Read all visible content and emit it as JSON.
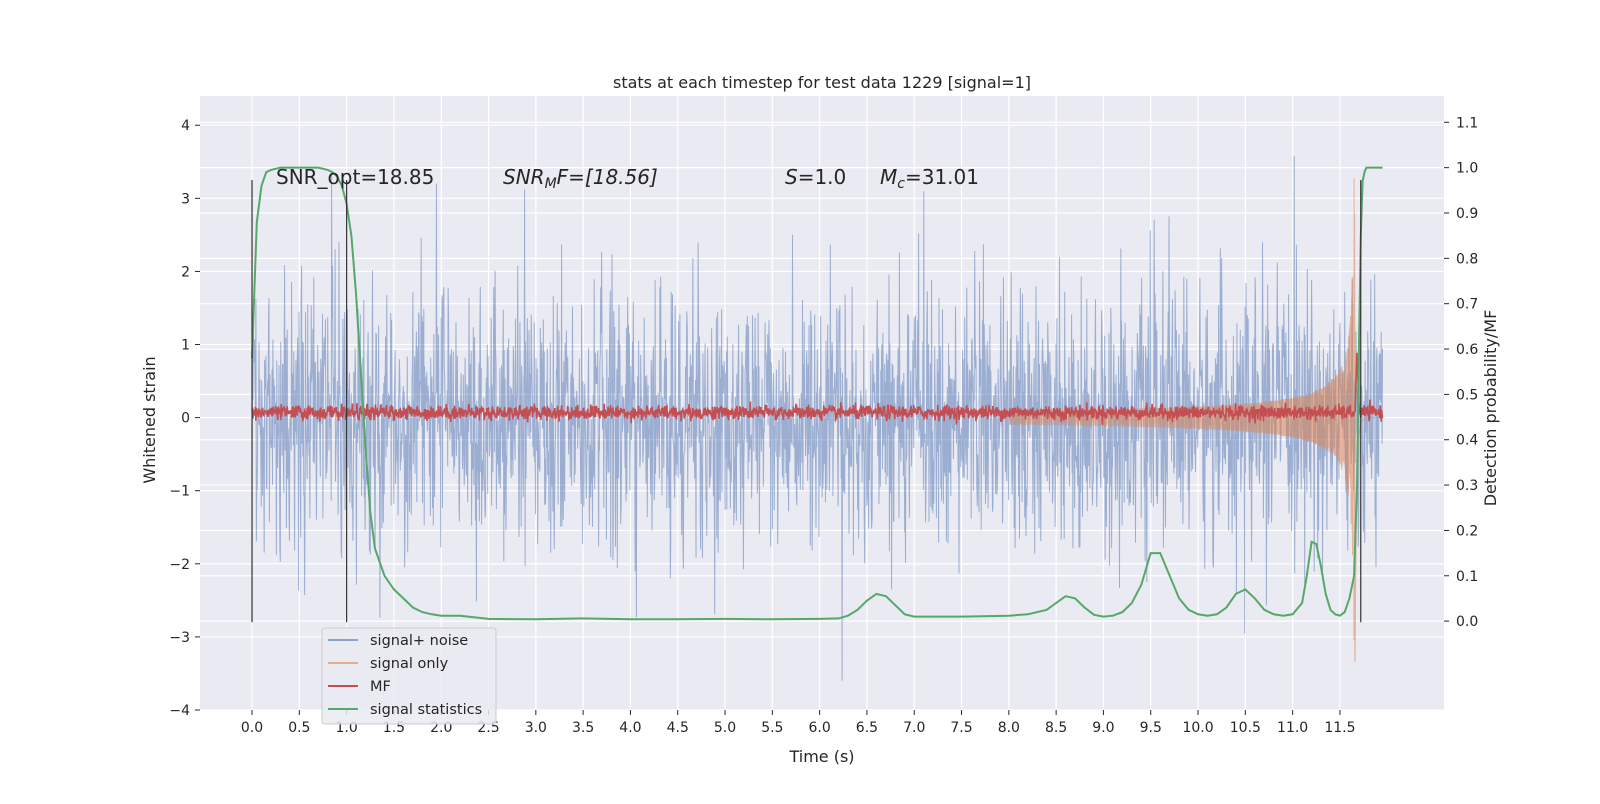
{
  "chart_data": {
    "type": "line",
    "title": "stats at each timestep for test data 1229 [signal=1]",
    "xlabel": "Time (s)",
    "ylabel": "Whitened strain",
    "y2label": "Detection probability/MF",
    "xlim": [
      -0.55,
      12.6
    ],
    "ylim": [
      -4.0,
      4.4
    ],
    "y2lim": [
      -0.196,
      1.158
    ],
    "x_ticks": [
      0.0,
      0.5,
      1.0,
      1.5,
      2.0,
      2.5,
      3.0,
      3.5,
      4.0,
      4.5,
      5.0,
      5.5,
      6.0,
      6.5,
      7.0,
      7.5,
      8.0,
      8.5,
      9.0,
      9.5,
      10.0,
      10.5,
      11.0,
      11.5
    ],
    "x_tick_labels": [
      "0.0",
      "0.5",
      "1.0",
      "1.5",
      "2.0",
      "2.5",
      "3.0",
      "3.5",
      "4.0",
      "4.5",
      "5.0",
      "5.5",
      "6.0",
      "6.5",
      "7.0",
      "7.5",
      "8.0",
      "8.5",
      "9.0",
      "9.5",
      "10.0",
      "10.5",
      "11.0",
      "11.5"
    ],
    "y_ticks": [
      -4,
      -3,
      -2,
      -1,
      0,
      1,
      2,
      3,
      4
    ],
    "y_tick_labels": [
      "−4",
      "−3",
      "−2",
      "−1",
      "0",
      "1",
      "2",
      "3",
      "4"
    ],
    "y2_ticks": [
      0.0,
      0.1,
      0.2,
      0.3,
      0.4,
      0.5,
      0.6,
      0.7,
      0.8,
      0.9,
      1.0,
      1.1
    ],
    "y2_tick_labels": [
      "0.0",
      "0.1",
      "0.2",
      "0.3",
      "0.4",
      "0.5",
      "0.6",
      "0.7",
      "0.8",
      "0.9",
      "1.0",
      "1.1"
    ],
    "grid": true,
    "legend_placement": "lower-left",
    "annotations": [
      {
        "text": "SNR_opt=18.85"
      },
      {
        "math": true,
        "base": "SNR",
        "sub": "M",
        "rest": "F=[18.56]"
      },
      {
        "math": true,
        "base": "S",
        "rest": "=1.0"
      },
      {
        "math": true,
        "base": "M",
        "sub": "c",
        "rest": "=31.01"
      }
    ],
    "vertical_markers": [
      0.0,
      1.0,
      11.72
    ],
    "series": [
      {
        "name": "signal+ noise",
        "color": "#4c72b0",
        "axis": "left",
        "kind": "noisy strain, amplitude ~±1.6, spikes to ±3.8"
      },
      {
        "name": "signal only",
        "color": "#dd8452",
        "axis": "left",
        "kind": "chirp growing toward merger near 11.65 s, peak ±3.4"
      },
      {
        "name": "MF",
        "color": "#c44e52",
        "axis": "right",
        "kind": "flat ~0.46, spike to 0.6 at 11.68 s"
      },
      {
        "name": "signal statistics",
        "color": "#55a868",
        "axis": "right",
        "x": [
          0.0,
          0.05,
          0.1,
          0.15,
          0.2,
          0.3,
          0.5,
          0.7,
          0.8,
          0.85,
          0.9,
          0.95,
          1.0,
          1.05,
          1.1,
          1.15,
          1.2,
          1.25,
          1.3,
          1.4,
          1.5,
          1.6,
          1.7,
          1.8,
          1.9,
          2.0,
          2.2,
          2.5,
          3.0,
          3.5,
          4.0,
          4.5,
          5.0,
          5.5,
          6.0,
          6.2,
          6.3,
          6.4,
          6.5,
          6.6,
          6.7,
          6.8,
          6.9,
          7.0,
          7.5,
          8.0,
          8.2,
          8.4,
          8.5,
          8.6,
          8.7,
          8.8,
          8.9,
          9.0,
          9.1,
          9.2,
          9.3,
          9.4,
          9.5,
          9.6,
          9.7,
          9.8,
          9.9,
          10.0,
          10.1,
          10.2,
          10.3,
          10.4,
          10.5,
          10.6,
          10.7,
          10.8,
          10.9,
          11.0,
          11.1,
          11.15,
          11.2,
          11.25,
          11.3,
          11.35,
          11.4,
          11.45,
          11.5,
          11.55,
          11.6,
          11.65,
          11.68,
          11.7,
          11.72,
          11.74,
          11.76,
          11.78,
          11.8,
          11.85,
          11.9,
          11.95
        ],
        "values": [
          0.58,
          0.88,
          0.96,
          0.99,
          0.995,
          1.0,
          1.0,
          1.0,
          0.995,
          0.99,
          0.98,
          0.96,
          0.92,
          0.85,
          0.72,
          0.55,
          0.38,
          0.24,
          0.16,
          0.1,
          0.07,
          0.05,
          0.03,
          0.02,
          0.015,
          0.012,
          0.012,
          0.005,
          0.004,
          0.006,
          0.004,
          0.004,
          0.005,
          0.004,
          0.005,
          0.006,
          0.012,
          0.025,
          0.045,
          0.06,
          0.055,
          0.035,
          0.015,
          0.01,
          0.01,
          0.012,
          0.015,
          0.025,
          0.04,
          0.055,
          0.05,
          0.03,
          0.014,
          0.01,
          0.012,
          0.02,
          0.04,
          0.08,
          0.15,
          0.15,
          0.1,
          0.05,
          0.025,
          0.015,
          0.012,
          0.015,
          0.03,
          0.06,
          0.07,
          0.05,
          0.025,
          0.015,
          0.012,
          0.015,
          0.04,
          0.1,
          0.175,
          0.17,
          0.12,
          0.06,
          0.025,
          0.015,
          0.012,
          0.02,
          0.05,
          0.1,
          0.3,
          0.6,
          0.85,
          0.97,
          0.99,
          1.0,
          1.0,
          1.0,
          1.0,
          1.0
        ]
      }
    ]
  }
}
